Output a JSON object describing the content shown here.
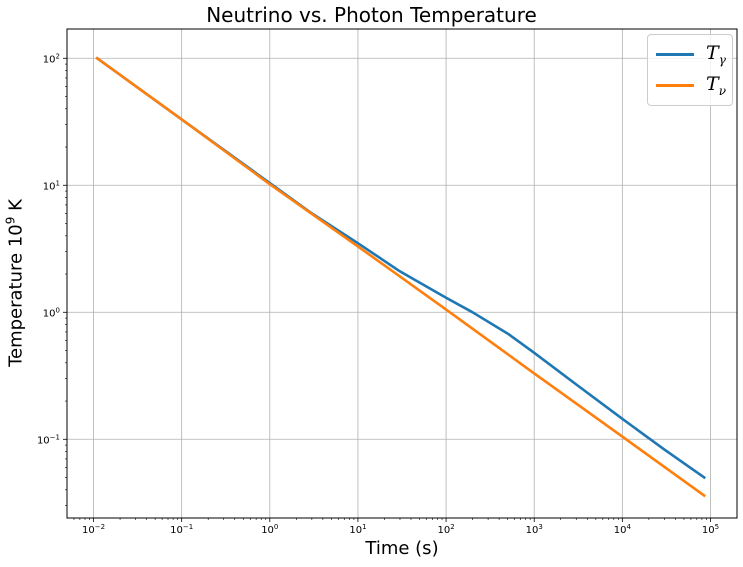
{
  "chart_data": {
    "type": "line",
    "title": "Neutrino vs. Photon Temperature",
    "xlabel": "Time (s)",
    "ylabel_text": "Temperature 10",
    "ylabel_exponent": "9",
    "ylabel_unit": " K",
    "x_scale": "log",
    "y_scale": "log",
    "xlim": [
      0.005,
      200000
    ],
    "ylim": [
      0.024,
      170
    ],
    "x_ticks": [
      {
        "value": 0.01,
        "base": "10",
        "exp": "−2"
      },
      {
        "value": 0.1,
        "base": "10",
        "exp": "−1"
      },
      {
        "value": 1,
        "base": "10",
        "exp": "0"
      },
      {
        "value": 10,
        "base": "10",
        "exp": "1"
      },
      {
        "value": 100,
        "base": "10",
        "exp": "2"
      },
      {
        "value": 1000,
        "base": "10",
        "exp": "3"
      },
      {
        "value": 10000,
        "base": "10",
        "exp": "4"
      },
      {
        "value": 100000,
        "base": "10",
        "exp": "5"
      }
    ],
    "y_ticks": [
      {
        "value": 0.1,
        "base": "10",
        "exp": "−1"
      },
      {
        "value": 1,
        "base": "10",
        "exp": "0"
      },
      {
        "value": 10,
        "base": "10",
        "exp": "1"
      },
      {
        "value": 100,
        "base": "10",
        "exp": "2"
      }
    ],
    "grid": true,
    "legend_position": "top-right",
    "series": [
      {
        "name": "Tγ",
        "label_base": "T",
        "label_sub": "γ",
        "color": "#1f77b4",
        "x": [
          0.011,
          0.1,
          1,
          3,
          10,
          30,
          100,
          200,
          500,
          1000,
          3000,
          10000,
          30000,
          85000
        ],
        "y": [
          100,
          33,
          10.4,
          6.0,
          3.5,
          2.1,
          1.3,
          1.0,
          0.68,
          0.48,
          0.27,
          0.145,
          0.083,
          0.05
        ]
      },
      {
        "name": "Tν",
        "label_base": "T",
        "label_sub": "ν",
        "color": "#ff7f0e",
        "x": [
          0.011,
          0.1,
          1,
          10,
          100,
          1000,
          10000,
          85000
        ],
        "y": [
          100,
          33,
          10.2,
          3.3,
          1.05,
          0.33,
          0.105,
          0.036
        ]
      }
    ]
  }
}
